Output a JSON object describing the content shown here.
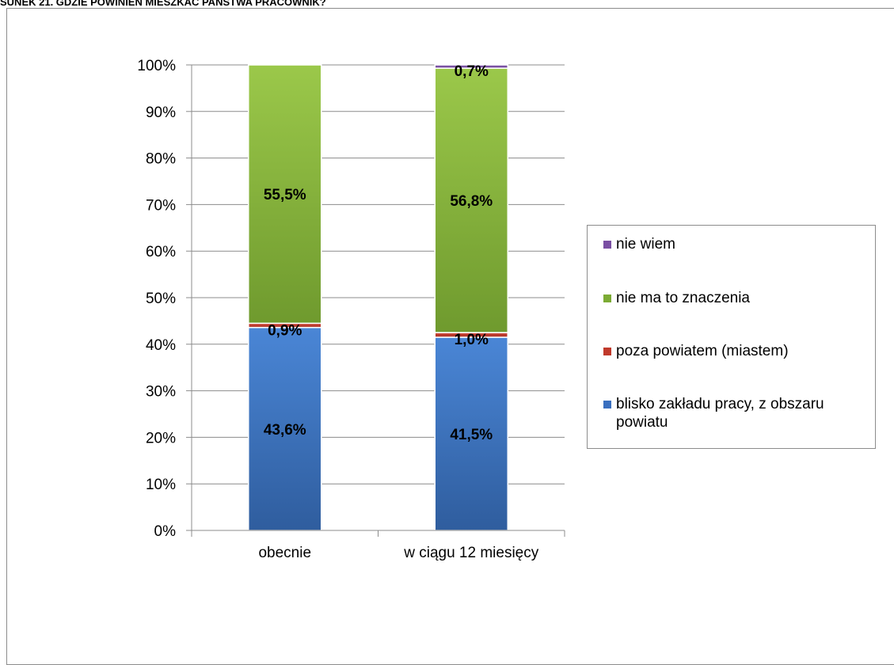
{
  "page": {
    "title": "SUNEK 21. GDZIE POWINIEN MIESZKAĆ PAŃSTWA PRACOWNIK?"
  },
  "chart_data": {
    "type": "bar",
    "stacked": true,
    "categories": [
      "obecnie",
      "w ciągu 12 miesięcy"
    ],
    "series": [
      {
        "name": "blisko zakładu pracy, z obszaru powiatu",
        "values": [
          43.6,
          41.5
        ],
        "color": "#3a6fbf",
        "labels": [
          "43,6%",
          "41,5%"
        ]
      },
      {
        "name": "poza powiatem (miastem)",
        "values": [
          0.9,
          1.0
        ],
        "color": "#c0392b",
        "labels": [
          "0,9%",
          "1,0%"
        ]
      },
      {
        "name": "nie ma to znaczenia",
        "values": [
          55.5,
          56.8
        ],
        "color": "#7cab34",
        "labels": [
          "55,5%",
          "56,8%"
        ]
      },
      {
        "name": "nie wiem",
        "values": [
          0,
          0.7
        ],
        "color": "#7a4fa3",
        "labels": [
          "",
          "0,7%"
        ]
      }
    ],
    "y_ticks": [
      "0%",
      "10%",
      "20%",
      "30%",
      "40%",
      "50%",
      "60%",
      "70%",
      "80%",
      "90%",
      "100%"
    ],
    "ylim": [
      0,
      100
    ],
    "grid": true,
    "legend_position": "right",
    "legend_order": [
      "nie wiem",
      "nie ma to znaczenia",
      "poza powiatem (miastem)",
      "blisko zakładu pracy, z obszaru powiatu"
    ]
  }
}
